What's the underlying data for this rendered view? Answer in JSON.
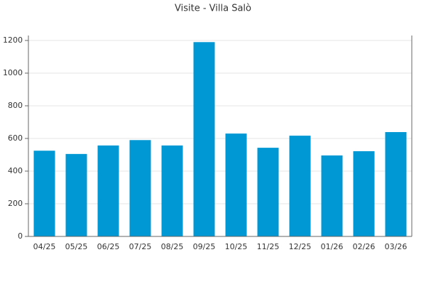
{
  "chart_data": {
    "type": "bar",
    "title": "Visite - Villa Salò",
    "categories": [
      "04/25",
      "05/25",
      "06/25",
      "07/25",
      "08/25",
      "09/25",
      "10/25",
      "11/25",
      "12/25",
      "01/26",
      "02/26",
      "03/26"
    ],
    "values": [
      525,
      505,
      557,
      590,
      557,
      1190,
      630,
      543,
      617,
      496,
      522,
      639
    ],
    "color": "#0098d4",
    "ylim": [
      0,
      1200
    ],
    "yticks": [
      0,
      200,
      400,
      600,
      800,
      1000,
      1200
    ],
    "grid": true
  }
}
